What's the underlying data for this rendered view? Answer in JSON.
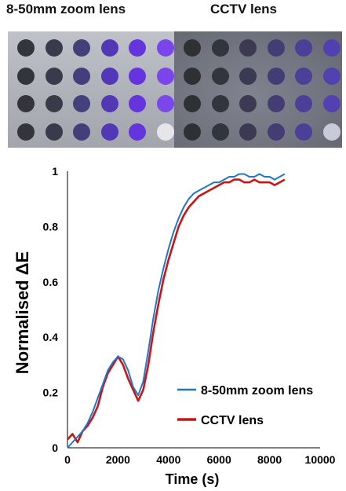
{
  "panels": {
    "left_title": "8-50mm zoom lens",
    "right_title": "CCTV lens"
  },
  "well_plates": {
    "rows": 4,
    "cols": 6,
    "left_colors": [
      [
        "#34353c",
        "#393b4c",
        "#433f79",
        "#5138b4",
        "#6435dd",
        "#7a45ec"
      ],
      [
        "#34353c",
        "#393b4d",
        "#443f7c",
        "#5238b6",
        "#6435de",
        "#7b45ec"
      ],
      [
        "#34353c",
        "#393b4b",
        "#44407b",
        "#5238b5",
        "#6435dd",
        "#7b46ea"
      ],
      [
        "#34353c",
        "#393a4b",
        "#443f7a",
        "#5238b6",
        "#6435dd",
        "#e6e6ea"
      ]
    ],
    "right_colors": [
      [
        "#2e3034",
        "#33353d",
        "#3b3a52",
        "#433d74",
        "#4b3f98",
        "#5340b0"
      ],
      [
        "#2e3034",
        "#33353d",
        "#3b3a53",
        "#443d75",
        "#4c3f98",
        "#5341b0"
      ],
      [
        "#2e3034",
        "#33353d",
        "#3b3a52",
        "#443d74",
        "#4b3f98",
        "#5340b1"
      ],
      [
        "#2e3034",
        "#33353d",
        "#3b3a52",
        "#433d73",
        "#4b3f97",
        "#c9c9d9"
      ]
    ]
  },
  "chart_data": {
    "type": "line",
    "xlabel": "Time (s)",
    "ylabel": "Normalised ΔE",
    "xlim": [
      0,
      10000
    ],
    "ylim": [
      0,
      1
    ],
    "xticks": [
      0,
      2000,
      4000,
      6000,
      8000,
      10000
    ],
    "yticks": [
      0,
      0.2,
      0.4,
      0.6,
      0.8,
      1
    ],
    "xtick_labels": [
      "0",
      "2000",
      "4000",
      "6000",
      "8000",
      "10000"
    ],
    "ytick_labels": [
      "0",
      "0.2",
      "0.4",
      "0.6",
      "0.8",
      "1"
    ],
    "legend_position": "lower-right",
    "series": [
      {
        "name": "8-50mm zoom lens",
        "color": "#1f77c8",
        "x": [
          0,
          200,
          400,
          600,
          800,
          1000,
          1200,
          1400,
          1600,
          1800,
          2000,
          2200,
          2400,
          2600,
          2800,
          3000,
          3200,
          3400,
          3600,
          3800,
          4000,
          4200,
          4400,
          4600,
          4800,
          5000,
          5200,
          5400,
          5600,
          5800,
          6000,
          6200,
          6400,
          6600,
          6800,
          7000,
          7200,
          7400,
          7600,
          7800,
          8000,
          8200,
          8400,
          8600
        ],
        "y": [
          0.0,
          0.02,
          0.04,
          0.06,
          0.09,
          0.13,
          0.18,
          0.23,
          0.28,
          0.31,
          0.33,
          0.32,
          0.28,
          0.22,
          0.19,
          0.24,
          0.35,
          0.47,
          0.57,
          0.65,
          0.72,
          0.78,
          0.83,
          0.87,
          0.9,
          0.92,
          0.93,
          0.94,
          0.95,
          0.96,
          0.96,
          0.97,
          0.98,
          0.98,
          0.99,
          0.99,
          0.98,
          0.98,
          0.99,
          0.98,
          0.98,
          0.97,
          0.98,
          0.99
        ]
      },
      {
        "name": "CCTV lens",
        "color": "#cc1414",
        "x": [
          0,
          200,
          400,
          600,
          800,
          1000,
          1200,
          1400,
          1600,
          1800,
          2000,
          2200,
          2400,
          2600,
          2800,
          3000,
          3200,
          3400,
          3600,
          3800,
          4000,
          4200,
          4400,
          4600,
          4800,
          5000,
          5200,
          5400,
          5600,
          5800,
          6000,
          6200,
          6400,
          6600,
          6800,
          7000,
          7200,
          7400,
          7600,
          7800,
          8000,
          8200,
          8400,
          8600
        ],
        "y": [
          0.03,
          0.05,
          0.02,
          0.06,
          0.08,
          0.11,
          0.15,
          0.22,
          0.27,
          0.3,
          0.33,
          0.3,
          0.25,
          0.21,
          0.17,
          0.21,
          0.3,
          0.42,
          0.52,
          0.61,
          0.68,
          0.74,
          0.8,
          0.84,
          0.87,
          0.89,
          0.91,
          0.92,
          0.93,
          0.94,
          0.95,
          0.96,
          0.96,
          0.97,
          0.97,
          0.96,
          0.96,
          0.97,
          0.96,
          0.96,
          0.96,
          0.95,
          0.96,
          0.97
        ]
      }
    ]
  }
}
